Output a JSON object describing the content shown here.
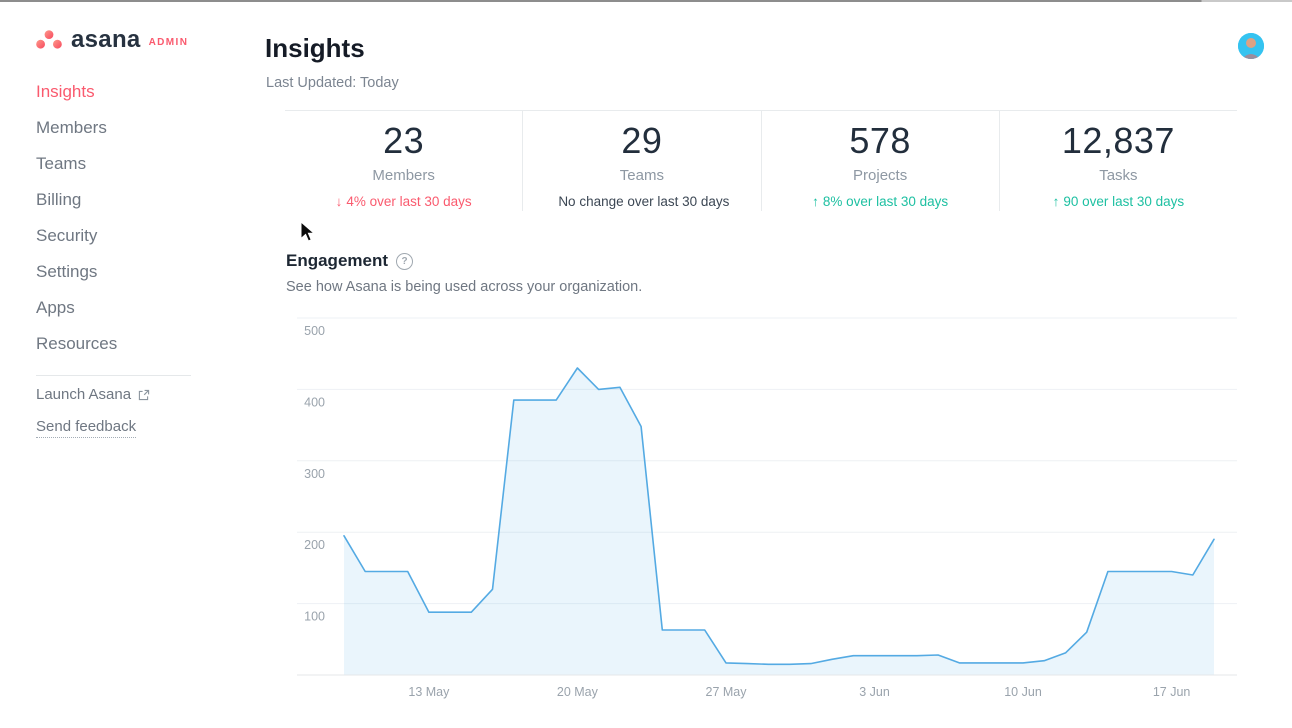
{
  "colors": {
    "accent_red": "#fa5a6e",
    "accent_green": "#1ec0a2",
    "text_dark": "#18222f",
    "text_gray": "#6f7782",
    "divider": "#e8ebed"
  },
  "sidebar": {
    "logo": {
      "brand": "asana",
      "badge": "ADMIN"
    },
    "items": [
      {
        "label": "Insights",
        "active": true
      },
      {
        "label": "Members",
        "active": false
      },
      {
        "label": "Teams",
        "active": false
      },
      {
        "label": "Billing",
        "active": false
      },
      {
        "label": "Security",
        "active": false
      },
      {
        "label": "Settings",
        "active": false
      },
      {
        "label": "Apps",
        "active": false
      },
      {
        "label": "Resources",
        "active": false
      }
    ],
    "footer_links": [
      {
        "label": "Launch Asana",
        "external": true
      },
      {
        "label": "Send feedback",
        "external": false
      }
    ]
  },
  "header": {
    "title": "Insights",
    "subtitle": "Last Updated: Today"
  },
  "stats": [
    {
      "value": "23",
      "label": "Members",
      "arrow": "↓",
      "delta_text": "4% over last 30 days",
      "tone": "negative"
    },
    {
      "value": "29",
      "label": "Teams",
      "arrow": "",
      "delta_text": "No change over last 30 days",
      "tone": "neutral"
    },
    {
      "value": "578",
      "label": "Projects",
      "arrow": "↑",
      "delta_text": "8% over last 30 days",
      "tone": "positive"
    },
    {
      "value": "12,837",
      "label": "Tasks",
      "arrow": "↑",
      "delta_text": "90 over last 30 days",
      "tone": "positive"
    }
  ],
  "engagement": {
    "title": "Engagement",
    "help_glyph": "?",
    "subtitle": "See how Asana is being used across your organization."
  },
  "chart_data": {
    "type": "area",
    "title": "Engagement",
    "x": [
      "9 May",
      "10 May",
      "11 May",
      "12 May",
      "13 May",
      "14 May",
      "15 May",
      "16 May",
      "17 May",
      "18 May",
      "19 May",
      "20 May",
      "21 May",
      "22 May",
      "23 May",
      "24 May",
      "25 May",
      "26 May",
      "27 May",
      "28 May",
      "29 May",
      "30 May",
      "31 May",
      "1 Jun",
      "2 Jun",
      "3 Jun",
      "4 Jun",
      "5 Jun",
      "6 Jun",
      "7 Jun",
      "8 Jun",
      "9 Jun",
      "10 Jun",
      "11 Jun",
      "12 Jun",
      "13 Jun",
      "14 Jun",
      "15 Jun",
      "16 Jun",
      "17 Jun",
      "18 Jun",
      "19 Jun"
    ],
    "values": [
      195,
      145,
      145,
      145,
      88,
      88,
      88,
      120,
      385,
      385,
      385,
      430,
      400,
      403,
      348,
      63,
      63,
      63,
      17,
      16,
      15,
      15,
      16,
      22,
      27,
      27,
      27,
      27,
      28,
      17,
      17,
      17,
      17,
      20,
      31,
      60,
      145,
      145,
      145,
      145,
      140,
      190
    ],
    "x_tick_labels": [
      "13 May",
      "20 May",
      "27 May",
      "3 Jun",
      "10 Jun",
      "17 Jun"
    ],
    "x_tick_indices": [
      4,
      11,
      18,
      25,
      32,
      39
    ],
    "y_ticks": [
      100,
      200,
      300,
      400,
      500
    ],
    "ylim": [
      0,
      500
    ],
    "xlabel": "",
    "ylabel": "",
    "grid": true,
    "legend": "none",
    "line_color": "#54aae3",
    "fill_color": "rgba(84,170,227,0.12)"
  }
}
